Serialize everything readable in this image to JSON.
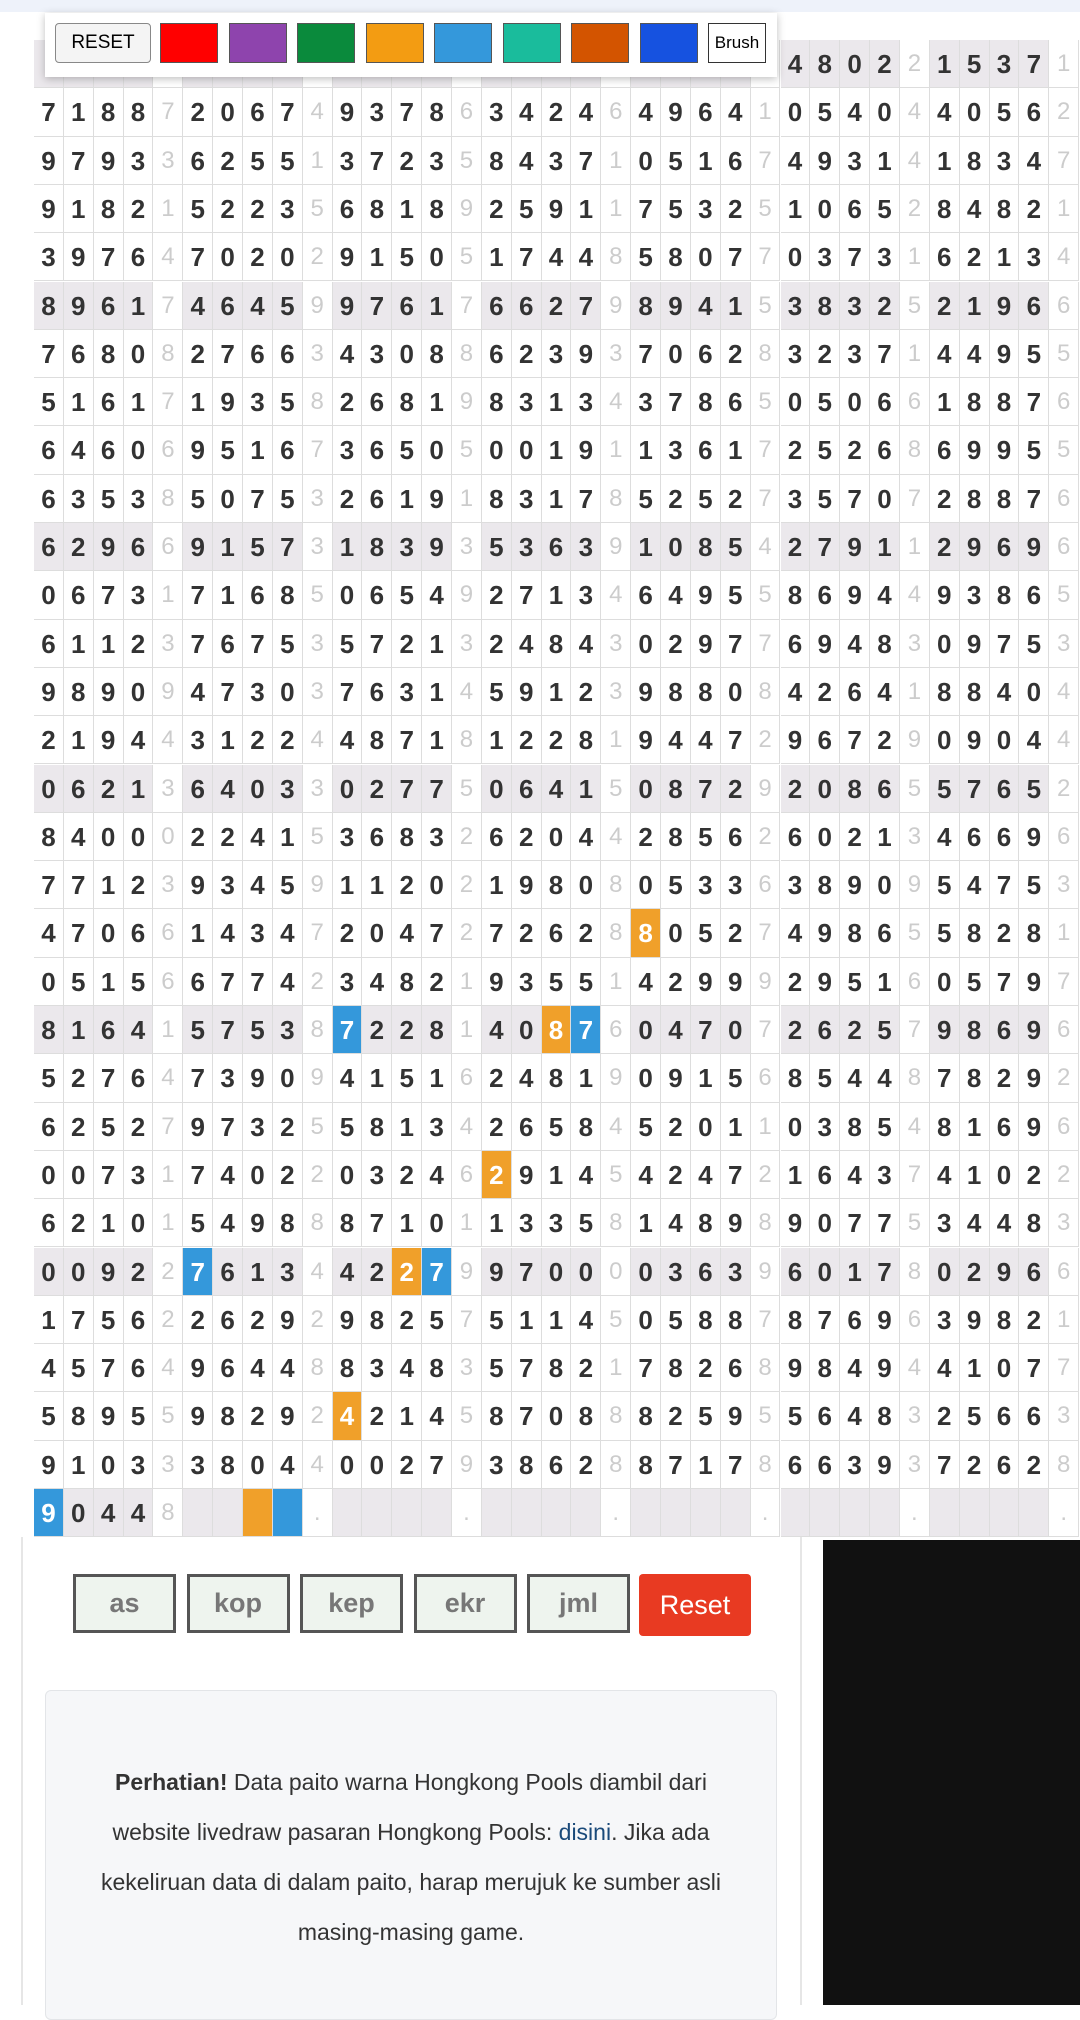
{
  "toolbar": {
    "reset": "RESET",
    "colors": [
      "#ff0000",
      "#8e44ad",
      "#0a8a3c",
      "#f39c12",
      "#3498db",
      "#1abc9c",
      "#d35400",
      "#1652e0"
    ],
    "brush": "Brush"
  },
  "table": {
    "rows": [
      [
        null,
        null,
        null,
        null,
        null,
        null,
        null,
        null,
        null,
        null,
        null,
        null,
        null,
        null,
        null,
        null,
        null,
        null,
        null,
        null,
        null,
        null,
        null,
        null,
        null,
        4,
        8,
        0,
        2,
        2,
        1,
        5,
        3,
        7,
        1
      ],
      [
        7,
        1,
        8,
        8,
        7,
        2,
        0,
        6,
        7,
        4,
        9,
        3,
        7,
        8,
        6,
        3,
        4,
        2,
        4,
        6,
        4,
        9,
        6,
        4,
        1,
        0,
        5,
        4,
        0,
        4,
        4,
        0,
        5,
        6,
        2
      ],
      [
        9,
        7,
        9,
        3,
        3,
        6,
        2,
        5,
        5,
        1,
        3,
        7,
        2,
        3,
        5,
        8,
        4,
        3,
        7,
        1,
        0,
        5,
        1,
        6,
        7,
        4,
        9,
        3,
        1,
        4,
        1,
        8,
        3,
        4,
        7
      ],
      [
        9,
        1,
        8,
        2,
        1,
        5,
        2,
        2,
        3,
        5,
        6,
        8,
        1,
        8,
        9,
        2,
        5,
        9,
        1,
        1,
        7,
        5,
        3,
        2,
        5,
        1,
        0,
        6,
        5,
        2,
        8,
        4,
        8,
        2,
        1
      ],
      [
        3,
        9,
        7,
        6,
        4,
        7,
        0,
        2,
        0,
        2,
        9,
        1,
        5,
        0,
        5,
        1,
        7,
        4,
        4,
        8,
        5,
        8,
        0,
        7,
        7,
        0,
        3,
        7,
        3,
        1,
        6,
        2,
        1,
        3,
        4
      ],
      [
        8,
        9,
        6,
        1,
        7,
        4,
        6,
        4,
        5,
        9,
        9,
        7,
        6,
        1,
        7,
        6,
        6,
        2,
        7,
        9,
        8,
        9,
        4,
        1,
        5,
        3,
        8,
        3,
        2,
        5,
        2,
        1,
        9,
        6,
        6
      ],
      [
        7,
        6,
        8,
        0,
        8,
        2,
        7,
        6,
        6,
        3,
        4,
        3,
        0,
        8,
        8,
        6,
        2,
        3,
        9,
        3,
        7,
        0,
        6,
        2,
        8,
        3,
        2,
        3,
        7,
        1,
        4,
        4,
        9,
        5,
        5
      ],
      [
        5,
        1,
        6,
        1,
        7,
        1,
        9,
        3,
        5,
        8,
        2,
        6,
        8,
        1,
        9,
        8,
        3,
        1,
        3,
        4,
        3,
        7,
        8,
        6,
        5,
        0,
        5,
        0,
        6,
        6,
        1,
        8,
        8,
        7,
        6
      ],
      [
        6,
        4,
        6,
        0,
        6,
        9,
        5,
        1,
        6,
        7,
        3,
        6,
        5,
        0,
        5,
        0,
        0,
        1,
        9,
        1,
        1,
        3,
        6,
        1,
        7,
        2,
        5,
        2,
        6,
        8,
        6,
        9,
        9,
        5,
        5
      ],
      [
        6,
        3,
        5,
        3,
        8,
        5,
        0,
        7,
        5,
        3,
        2,
        6,
        1,
        9,
        1,
        8,
        3,
        1,
        7,
        8,
        5,
        2,
        5,
        2,
        7,
        3,
        5,
        7,
        0,
        7,
        2,
        8,
        8,
        7,
        6
      ],
      [
        6,
        2,
        9,
        6,
        6,
        9,
        1,
        5,
        7,
        3,
        1,
        8,
        3,
        9,
        3,
        5,
        3,
        6,
        3,
        9,
        1,
        0,
        8,
        5,
        4,
        2,
        7,
        9,
        1,
        1,
        2,
        9,
        6,
        9,
        6
      ],
      [
        0,
        6,
        7,
        3,
        1,
        7,
        1,
        6,
        8,
        5,
        0,
        6,
        5,
        4,
        9,
        2,
        7,
        1,
        3,
        4,
        6,
        4,
        9,
        5,
        5,
        8,
        6,
        9,
        4,
        4,
        9,
        3,
        8,
        6,
        5
      ],
      [
        6,
        1,
        1,
        2,
        3,
        7,
        6,
        7,
        5,
        3,
        5,
        7,
        2,
        1,
        3,
        2,
        4,
        8,
        4,
        3,
        0,
        2,
        9,
        7,
        7,
        6,
        9,
        4,
        8,
        3,
        0,
        9,
        7,
        5,
        3
      ],
      [
        9,
        8,
        9,
        0,
        9,
        4,
        7,
        3,
        0,
        3,
        7,
        6,
        3,
        1,
        4,
        5,
        9,
        1,
        2,
        3,
        9,
        8,
        8,
        0,
        8,
        4,
        2,
        6,
        4,
        1,
        8,
        8,
        4,
        0,
        4
      ],
      [
        2,
        1,
        9,
        4,
        4,
        3,
        1,
        2,
        2,
        4,
        4,
        8,
        7,
        1,
        8,
        1,
        2,
        2,
        8,
        1,
        9,
        4,
        4,
        7,
        2,
        9,
        6,
        7,
        2,
        9,
        0,
        9,
        0,
        4,
        4
      ],
      [
        0,
        6,
        2,
        1,
        3,
        6,
        4,
        0,
        3,
        3,
        0,
        2,
        7,
        7,
        5,
        0,
        6,
        4,
        1,
        5,
        0,
        8,
        7,
        2,
        9,
        2,
        0,
        8,
        6,
        5,
        5,
        7,
        6,
        5,
        2
      ],
      [
        8,
        4,
        0,
        0,
        0,
        2,
        2,
        4,
        1,
        5,
        3,
        6,
        8,
        3,
        2,
        6,
        2,
        0,
        4,
        4,
        2,
        8,
        5,
        6,
        2,
        6,
        0,
        2,
        1,
        3,
        4,
        6,
        6,
        9,
        6
      ],
      [
        7,
        7,
        1,
        2,
        3,
        9,
        3,
        4,
        5,
        9,
        1,
        1,
        2,
        0,
        2,
        1,
        9,
        8,
        0,
        8,
        0,
        5,
        3,
        3,
        6,
        3,
        8,
        9,
        0,
        9,
        5,
        4,
        7,
        5,
        3
      ],
      [
        4,
        7,
        0,
        6,
        6,
        1,
        4,
        3,
        4,
        7,
        2,
        0,
        4,
        7,
        2,
        7,
        2,
        6,
        2,
        8,
        8,
        0,
        5,
        2,
        7,
        4,
        9,
        8,
        6,
        5,
        5,
        8,
        2,
        8,
        1
      ],
      [
        0,
        5,
        1,
        5,
        6,
        6,
        7,
        7,
        4,
        2,
        3,
        4,
        8,
        2,
        1,
        9,
        3,
        5,
        5,
        1,
        4,
        2,
        9,
        9,
        9,
        2,
        9,
        5,
        1,
        6,
        0,
        5,
        7,
        9,
        7
      ],
      [
        8,
        1,
        6,
        4,
        1,
        5,
        7,
        5,
        3,
        8,
        7,
        2,
        2,
        8,
        1,
        4,
        0,
        8,
        7,
        6,
        0,
        4,
        7,
        0,
        7,
        2,
        6,
        2,
        5,
        7,
        9,
        8,
        6,
        9,
        6
      ],
      [
        5,
        2,
        7,
        6,
        4,
        7,
        3,
        9,
        0,
        9,
        4,
        1,
        5,
        1,
        6,
        2,
        4,
        8,
        1,
        9,
        0,
        9,
        1,
        5,
        6,
        8,
        5,
        4,
        4,
        8,
        7,
        8,
        2,
        9,
        2
      ],
      [
        6,
        2,
        5,
        2,
        7,
        9,
        7,
        3,
        2,
        5,
        5,
        8,
        1,
        3,
        4,
        2,
        6,
        5,
        8,
        4,
        5,
        2,
        0,
        1,
        1,
        0,
        3,
        8,
        5,
        4,
        8,
        1,
        6,
        9,
        6
      ],
      [
        0,
        0,
        7,
        3,
        1,
        7,
        4,
        0,
        2,
        2,
        0,
        3,
        2,
        4,
        6,
        2,
        9,
        1,
        4,
        5,
        4,
        2,
        4,
        7,
        2,
        1,
        6,
        4,
        3,
        7,
        4,
        1,
        0,
        2,
        2
      ],
      [
        6,
        2,
        1,
        0,
        1,
        5,
        4,
        9,
        8,
        8,
        8,
        7,
        1,
        0,
        1,
        1,
        3,
        3,
        5,
        8,
        1,
        4,
        8,
        9,
        8,
        9,
        0,
        7,
        7,
        5,
        3,
        4,
        4,
        8,
        3
      ],
      [
        0,
        0,
        9,
        2,
        2,
        7,
        6,
        1,
        3,
        4,
        4,
        2,
        2,
        7,
        9,
        9,
        7,
        0,
        0,
        0,
        0,
        3,
        6,
        3,
        9,
        6,
        0,
        1,
        7,
        8,
        0,
        2,
        9,
        6,
        6
      ],
      [
        1,
        7,
        5,
        6,
        2,
        2,
        6,
        2,
        9,
        2,
        9,
        8,
        2,
        5,
        7,
        5,
        1,
        1,
        4,
        5,
        0,
        5,
        8,
        8,
        7,
        8,
        7,
        6,
        9,
        6,
        3,
        9,
        8,
        2,
        1
      ],
      [
        4,
        5,
        7,
        6,
        4,
        9,
        6,
        4,
        4,
        8,
        8,
        3,
        4,
        8,
        3,
        5,
        7,
        8,
        2,
        1,
        7,
        8,
        2,
        6,
        8,
        9,
        8,
        4,
        9,
        4,
        4,
        1,
        0,
        7,
        7
      ],
      [
        5,
        8,
        9,
        5,
        5,
        9,
        8,
        2,
        9,
        2,
        4,
        2,
        1,
        4,
        5,
        8,
        7,
        0,
        8,
        8,
        8,
        2,
        5,
        9,
        5,
        5,
        6,
        4,
        8,
        3,
        2,
        5,
        6,
        6,
        3
      ],
      [
        9,
        1,
        0,
        3,
        3,
        3,
        8,
        0,
        4,
        4,
        0,
        0,
        2,
        7,
        9,
        3,
        8,
        6,
        2,
        8,
        8,
        7,
        1,
        7,
        8,
        6,
        6,
        3,
        9,
        3,
        7,
        2,
        6,
        2,
        8
      ],
      [
        9,
        0,
        4,
        4,
        8,
        null,
        null,
        null,
        null,
        ".",
        null,
        null,
        null,
        null,
        ".",
        null,
        null,
        null,
        null,
        ".",
        null,
        null,
        null,
        null,
        ".",
        null,
        null,
        null,
        null,
        ".",
        null,
        null,
        null,
        null,
        "."
      ]
    ],
    "highlights": [
      {
        "row": 18,
        "col": 20,
        "color": "#f0a02a"
      },
      {
        "row": 20,
        "col": 10,
        "color": "#3498db"
      },
      {
        "row": 20,
        "col": 17,
        "color": "#f0a02a"
      },
      {
        "row": 20,
        "col": 18,
        "color": "#3498db"
      },
      {
        "row": 23,
        "col": 15,
        "color": "#f0a02a"
      },
      {
        "row": 25,
        "col": 5,
        "color": "#3498db"
      },
      {
        "row": 25,
        "col": 12,
        "color": "#f0a02a"
      },
      {
        "row": 25,
        "col": 13,
        "color": "#3498db"
      },
      {
        "row": 28,
        "col": 10,
        "color": "#f0a02a"
      },
      {
        "row": 30,
        "col": 0,
        "color": "#3498db"
      },
      {
        "row": 30,
        "col": 7,
        "color": "#f0a02a"
      },
      {
        "row": 30,
        "col": 8,
        "color": "#3498db"
      }
    ]
  },
  "filters": {
    "inputs": [
      "as",
      "kop",
      "kep",
      "ekr",
      "jml"
    ],
    "reset": "Reset"
  },
  "notice": {
    "strong": "Perhatian!",
    "text1": " Data paito warna Hongkong Pools diambil dari website livedraw pasaran Hongkong Pools: ",
    "link": "disini",
    "text2": ". Jika ada kekeliruan data di dalam paito, harap merujuk ke sumber asli masing-masing game."
  }
}
